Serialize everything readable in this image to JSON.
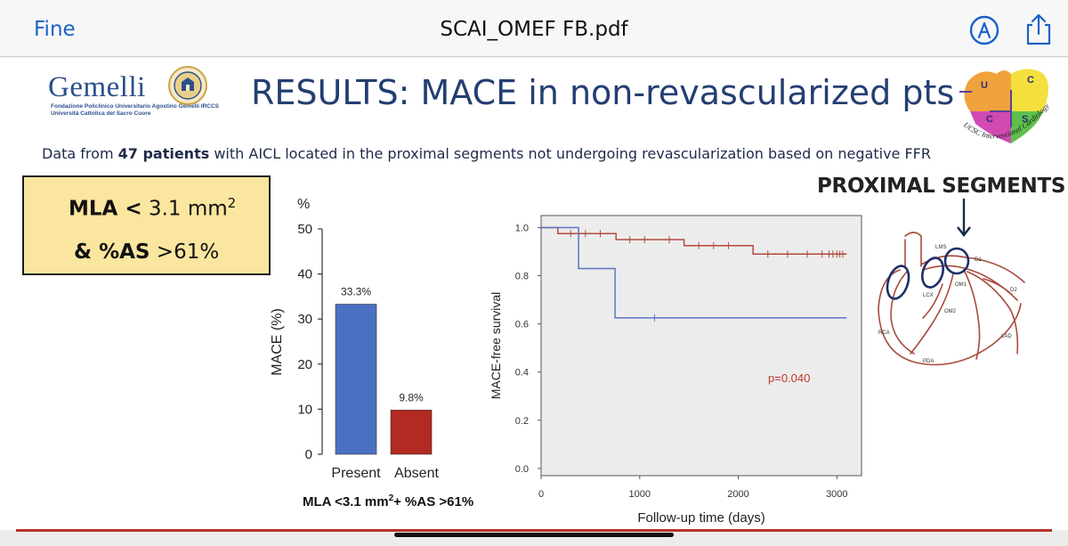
{
  "viewer": {
    "done_label": "Fine",
    "document_title": "SCAI_OMEF FB.pdf",
    "markup_icon": "markup-pen-icon",
    "share_icon": "share-icon",
    "accent_color": "#1a62c8"
  },
  "slide": {
    "logo": {
      "name": "Gemelli",
      "line1": "Fondazione Policlinico Universitario Agostino Gemelli IRCCS",
      "line2": "Università Cattolica del Sacro Cuore"
    },
    "title": "RESULTS: MACE in non-revascularized pts",
    "puzzle_logo": {
      "letters": [
        "U",
        "C",
        "C",
        "S"
      ],
      "text": "UCSC Interventional Cardiology"
    },
    "intro": {
      "pre": "Data from ",
      "bold": "47 patients",
      "post": " with AICL located in the proximal segments not undergoing revascularization based on negative FFR"
    },
    "criteria_box": {
      "line1_bold": "MLA <",
      "line1_rest": " 3.1 mm",
      "line1_sup": "2",
      "line2_bold": "& %AS",
      "line2_rest": " >61%",
      "background": "#fbe6a0"
    },
    "proximal_label": "PROXIMAL SEGMENTS",
    "heart_labels": [
      "LMS",
      "D1",
      "OM1",
      "LCX",
      "D2",
      "OM2",
      "RCA",
      "LAD",
      "PDA"
    ]
  },
  "chart_data": [
    {
      "type": "bar",
      "unit_label": "%",
      "ylabel": "MACE (%)",
      "ylim": [
        0,
        50
      ],
      "yticks": [
        "0",
        "10",
        "20",
        "30",
        "40",
        "50"
      ],
      "categories": [
        "Present",
        "Absent"
      ],
      "values": [
        33.3,
        9.8
      ],
      "data_labels": [
        "33.3%",
        "9.8%"
      ],
      "colors": [
        "#4a70c1",
        "#b22a22"
      ],
      "xlabel": {
        "main": "MLA <3.1 mm",
        "sup": "2",
        "rest": "+ %AS >61%"
      }
    },
    {
      "type": "line",
      "ylabel": "MACE-free survival",
      "xlabel": "Follow-up time (days)",
      "xlim": [
        0,
        3250
      ],
      "ylim": [
        0,
        1.0
      ],
      "xticks": [
        "0",
        "1000",
        "2000",
        "3000"
      ],
      "yticks": [
        "0.0",
        "0.2",
        "0.4",
        "0.6",
        "0.8",
        "1.0"
      ],
      "annotation": "p=0.040",
      "background": "#ececec",
      "series": [
        {
          "color": "#b54a3d",
          "steps": [
            [
              0,
              1.0
            ],
            [
              170,
              0.975
            ],
            [
              760,
              0.95
            ],
            [
              1450,
              0.925
            ],
            [
              2150,
              0.89
            ],
            [
              3100,
              0.89
            ]
          ],
          "censored": [
            300,
            450,
            600,
            900,
            1050,
            1300,
            1600,
            1750,
            1900,
            2300,
            2500,
            2700,
            2850,
            2920,
            2960,
            3000,
            3030,
            3060
          ]
        },
        {
          "color": "#5a77c5",
          "steps": [
            [
              0,
              1.0
            ],
            [
              380,
              0.83
            ],
            [
              750,
              0.625
            ],
            [
              3100,
              0.625
            ]
          ],
          "censored": [
            1150
          ]
        }
      ]
    }
  ]
}
